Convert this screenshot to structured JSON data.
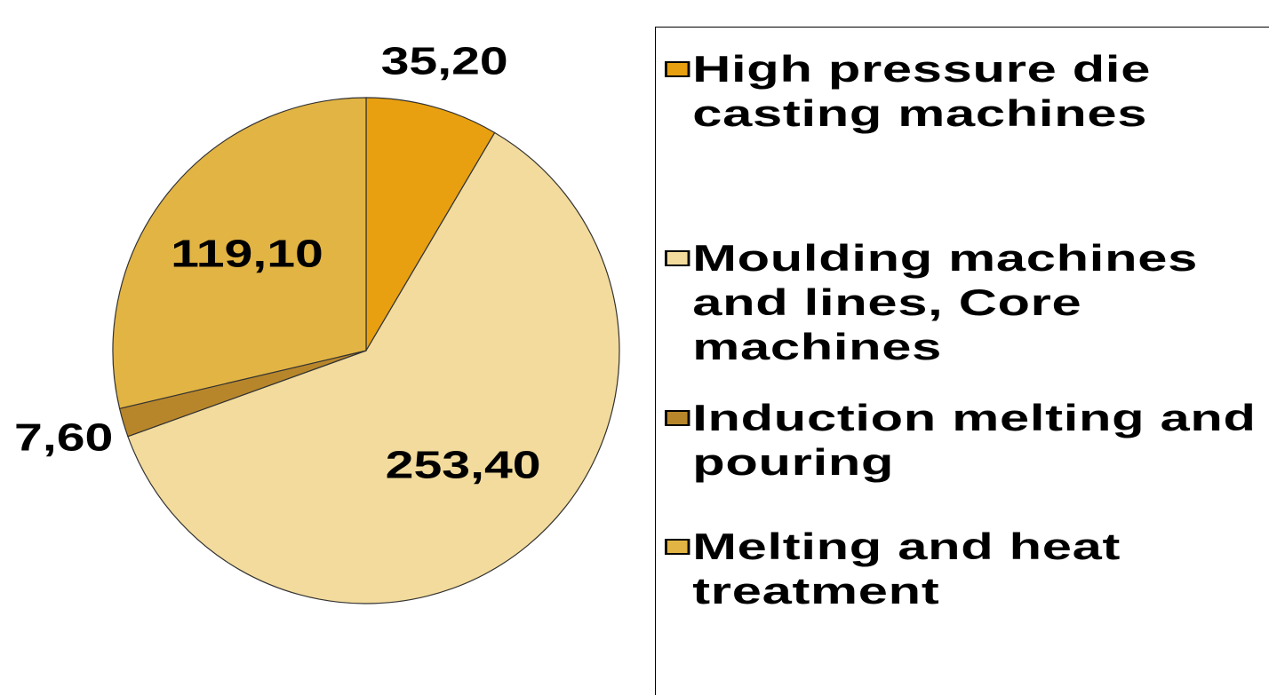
{
  "chart_data": {
    "type": "pie",
    "categories": [
      "High pressure die casting machines",
      "Moulding machines and lines, Core machines",
      "Induction melting and pouring",
      "Melting and heat treatment"
    ],
    "values": [
      35.2,
      253.4,
      7.6,
      119.1
    ],
    "value_labels": [
      "35,20",
      "253,40",
      "7,60",
      "119,10"
    ],
    "colors": [
      "#e8a010",
      "#f2db9c",
      "#b8862a",
      "#e2b444"
    ]
  }
}
